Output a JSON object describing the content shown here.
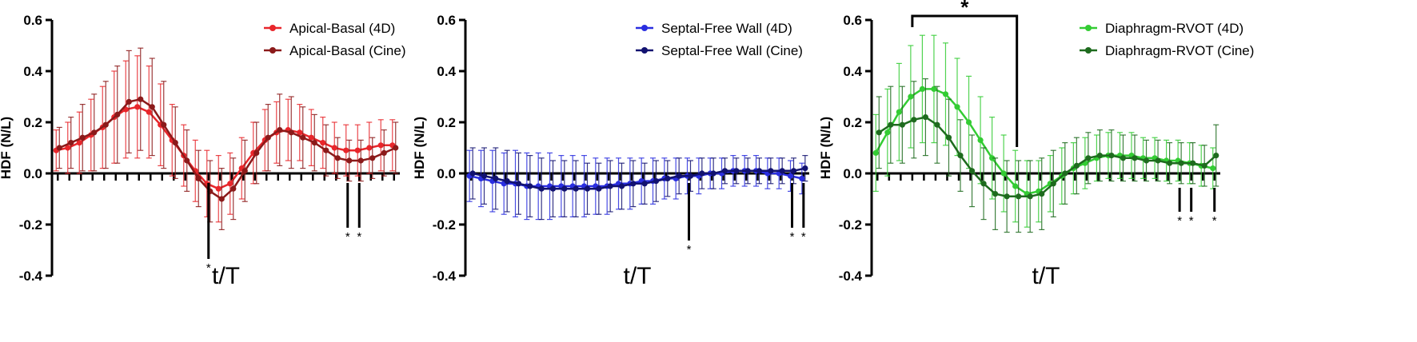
{
  "chart_data": [
    {
      "type": "line",
      "xlabel": "t/T",
      "ylabel": "HDF (N/L)",
      "ylim": [
        -0.4,
        0.6
      ],
      "yticks": [
        "-0.4",
        "-0.2",
        "0.0",
        "0.2",
        "0.4",
        "0.6"
      ],
      "x_points": 30,
      "grid": false,
      "legend_position": "top-right",
      "series": [
        {
          "name": "Apical-Basal (4D)",
          "color": "#e8262b",
          "values": [
            0.09,
            0.1,
            0.12,
            0.15,
            0.18,
            0.22,
            0.25,
            0.26,
            0.24,
            0.19,
            0.13,
            0.07,
            0.01,
            -0.04,
            -0.06,
            -0.04,
            0.02,
            0.08,
            0.13,
            0.16,
            0.17,
            0.16,
            0.14,
            0.12,
            0.1,
            0.09,
            0.09,
            0.1,
            0.11,
            0.11
          ],
          "errors": [
            0.08,
            0.1,
            0.12,
            0.14,
            0.16,
            0.18,
            0.19,
            0.2,
            0.18,
            0.16,
            0.14,
            0.12,
            0.12,
            0.13,
            0.13,
            0.12,
            0.12,
            0.12,
            0.12,
            0.12,
            0.12,
            0.11,
            0.11,
            0.1,
            0.1,
            0.1,
            0.1,
            0.1,
            0.1,
            0.1
          ]
        },
        {
          "name": "Apical-Basal (Cine)",
          "color": "#8b1a1a",
          "values": [
            0.1,
            0.12,
            0.14,
            0.16,
            0.19,
            0.23,
            0.28,
            0.29,
            0.26,
            0.19,
            0.12,
            0.05,
            -0.02,
            -0.07,
            -0.1,
            -0.06,
            0.01,
            0.08,
            0.14,
            0.17,
            0.16,
            0.14,
            0.12,
            0.09,
            0.06,
            0.05,
            0.05,
            0.06,
            0.08,
            0.1
          ],
          "errors": [
            0.08,
            0.1,
            0.13,
            0.15,
            0.17,
            0.19,
            0.2,
            0.2,
            0.19,
            0.17,
            0.14,
            0.12,
            0.11,
            0.12,
            0.12,
            0.12,
            0.12,
            0.12,
            0.13,
            0.14,
            0.14,
            0.12,
            0.11,
            0.1,
            0.08,
            0.08,
            0.08,
            0.08,
            0.09,
            0.1
          ]
        }
      ],
      "significance": [
        {
          "x_index": 13,
          "label": "*"
        },
        {
          "x_index": 25,
          "label": "*"
        },
        {
          "x_index": 26,
          "label": "*"
        }
      ]
    },
    {
      "type": "line",
      "xlabel": "t/T",
      "ylabel": "HDF (N/L)",
      "ylim": [
        -0.4,
        0.6
      ],
      "yticks": [
        "-0.4",
        "-0.2",
        "0.0",
        "0.2",
        "0.4",
        "0.6"
      ],
      "x_points": 30,
      "grid": false,
      "legend_position": "top-right",
      "series": [
        {
          "name": "Septal-Free Wall (4D)",
          "color": "#2a2ee0",
          "values": [
            -0.01,
            -0.02,
            -0.03,
            -0.04,
            -0.04,
            -0.05,
            -0.05,
            -0.05,
            -0.05,
            -0.05,
            -0.05,
            -0.05,
            -0.05,
            -0.04,
            -0.04,
            -0.03,
            -0.03,
            -0.02,
            -0.02,
            -0.01,
            -0.01,
            0.0,
            0.0,
            0.01,
            0.01,
            0.01,
            0.0,
            0.0,
            -0.01,
            -0.02
          ],
          "errors": [
            0.1,
            0.11,
            0.12,
            0.12,
            0.13,
            0.13,
            0.13,
            0.13,
            0.12,
            0.12,
            0.12,
            0.11,
            0.11,
            0.1,
            0.1,
            0.09,
            0.09,
            0.08,
            0.08,
            0.07,
            0.07,
            0.06,
            0.06,
            0.06,
            0.06,
            0.06,
            0.06,
            0.06,
            0.06,
            0.06
          ]
        },
        {
          "name": "Septal-Free Wall (Cine)",
          "color": "#121270",
          "values": [
            0.0,
            -0.01,
            -0.02,
            -0.03,
            -0.04,
            -0.05,
            -0.06,
            -0.06,
            -0.06,
            -0.06,
            -0.06,
            -0.06,
            -0.05,
            -0.05,
            -0.04,
            -0.04,
            -0.03,
            -0.02,
            -0.01,
            -0.01,
            0.0,
            0.0,
            0.01,
            0.01,
            0.01,
            0.01,
            0.01,
            0.01,
            0.01,
            0.02
          ],
          "errors": [
            0.1,
            0.11,
            0.12,
            0.12,
            0.12,
            0.12,
            0.12,
            0.11,
            0.11,
            0.11,
            0.1,
            0.1,
            0.1,
            0.09,
            0.09,
            0.08,
            0.08,
            0.07,
            0.07,
            0.06,
            0.06,
            0.06,
            0.05,
            0.05,
            0.05,
            0.05,
            0.05,
            0.05,
            0.05,
            0.05
          ]
        }
      ],
      "significance": [
        {
          "x_index": 19,
          "label": "*"
        },
        {
          "x_index": 28,
          "label": "*"
        },
        {
          "x_index": 29,
          "label": "*"
        }
      ]
    },
    {
      "type": "line",
      "xlabel": "t/T",
      "ylabel": "HDF (N/L)",
      "ylim": [
        -0.4,
        0.6
      ],
      "yticks": [
        "-0.4",
        "-0.2",
        "0.0",
        "0.2",
        "0.4",
        "0.6"
      ],
      "x_points": 30,
      "grid": false,
      "legend_position": "top-right",
      "series": [
        {
          "name": "Diaphragm-RVOT (4D)",
          "color": "#33cc33",
          "values": [
            0.08,
            0.16,
            0.24,
            0.3,
            0.33,
            0.33,
            0.31,
            0.26,
            0.2,
            0.13,
            0.06,
            0.0,
            -0.05,
            -0.08,
            -0.07,
            -0.04,
            -0.01,
            0.02,
            0.04,
            0.06,
            0.07,
            0.07,
            0.07,
            0.06,
            0.06,
            0.05,
            0.05,
            0.04,
            0.03,
            0.02
          ],
          "errors": [
            0.15,
            0.17,
            0.19,
            0.2,
            0.21,
            0.21,
            0.2,
            0.19,
            0.18,
            0.17,
            0.16,
            0.15,
            0.14,
            0.13,
            0.12,
            0.11,
            0.11,
            0.1,
            0.1,
            0.09,
            0.09,
            0.09,
            0.09,
            0.08,
            0.08,
            0.08,
            0.08,
            0.08,
            0.08,
            0.08
          ]
        },
        {
          "name": "Diaphragm-RVOT (Cine)",
          "color": "#1e6b1e",
          "values": [
            0.16,
            0.19,
            0.19,
            0.21,
            0.22,
            0.19,
            0.14,
            0.07,
            0.01,
            -0.04,
            -0.08,
            -0.09,
            -0.09,
            -0.09,
            -0.08,
            -0.04,
            0.0,
            0.03,
            0.06,
            0.07,
            0.07,
            0.06,
            0.06,
            0.05,
            0.05,
            0.04,
            0.04,
            0.04,
            0.03,
            0.07
          ],
          "errors": [
            0.14,
            0.15,
            0.15,
            0.15,
            0.15,
            0.15,
            0.15,
            0.14,
            0.14,
            0.14,
            0.14,
            0.14,
            0.14,
            0.14,
            0.14,
            0.13,
            0.12,
            0.11,
            0.1,
            0.1,
            0.1,
            0.09,
            0.09,
            0.08,
            0.08,
            0.08,
            0.08,
            0.08,
            0.08,
            0.12
          ]
        }
      ],
      "significance": [
        {
          "x_index": 26,
          "label": "*"
        },
        {
          "x_index": 27,
          "label": "*"
        },
        {
          "x_index": 29,
          "label": "*"
        }
      ],
      "bracket": {
        "x_start": 3,
        "x_end": 12,
        "label": "*"
      }
    }
  ]
}
